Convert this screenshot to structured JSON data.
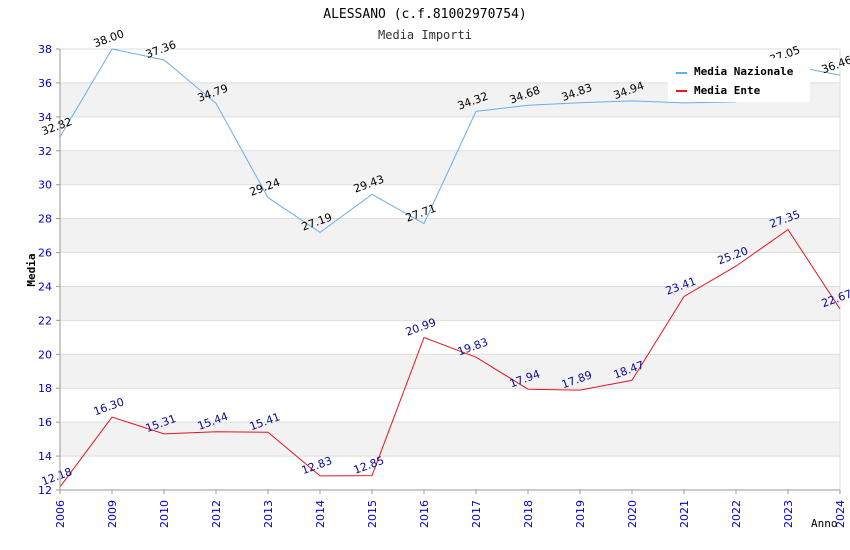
{
  "chart_data": {
    "type": "line",
    "title": "ALESSANO (c.f.81002970754)",
    "subtitle": "Media Importi",
    "xlabel": "Anno",
    "ylabel": "Media",
    "categories": [
      "2006",
      "2009",
      "2010",
      "2012",
      "2013",
      "2014",
      "2015",
      "2016",
      "2017",
      "2018",
      "2019",
      "2020",
      "2021",
      "2022",
      "2023",
      "2024"
    ],
    "ylim": [
      12,
      38
    ],
    "yticks": [
      12,
      14,
      16,
      18,
      20,
      22,
      24,
      26,
      28,
      30,
      32,
      34,
      36,
      38
    ],
    "grid": true,
    "legend_position": "top-right",
    "series": [
      {
        "name": "Media Nazionale",
        "color": "#6aaee8",
        "label_color": "#000000",
        "values": [
          32.82,
          38.0,
          37.36,
          34.79,
          29.24,
          27.19,
          29.43,
          27.71,
          34.32,
          34.68,
          34.83,
          34.94,
          34.82,
          34.88,
          37.05,
          36.46
        ],
        "labels": [
          "32.82",
          "38.00",
          "37.36",
          "34.79",
          "29.24",
          "27.19",
          "29.43",
          "27.71",
          "34.32",
          "34.68",
          "34.83",
          "34.94",
          "",
          "",
          "37.05",
          "36.46"
        ]
      },
      {
        "name": "Media Ente",
        "color": "#e8141e",
        "label_color": "#0a0a8c",
        "values": [
          12.18,
          16.3,
          15.31,
          15.44,
          15.41,
          12.83,
          12.85,
          20.99,
          19.83,
          17.94,
          17.89,
          18.47,
          23.41,
          25.2,
          27.35,
          22.67
        ],
        "labels": [
          "12.18",
          "16.30",
          "15.31",
          "15.44",
          "15.41",
          "12.83",
          "12.85",
          "20.99",
          "19.83",
          "17.94",
          "17.89",
          "18.47",
          "23.41",
          "25.20",
          "27.35",
          "22.67"
        ]
      }
    ]
  },
  "colors": {
    "axis_tick_text": "#0000cc",
    "grid_band": "#f2f2f2",
    "grid_line": "#dddddd",
    "title_text": "#000000",
    "subtitle_text": "#333333"
  }
}
